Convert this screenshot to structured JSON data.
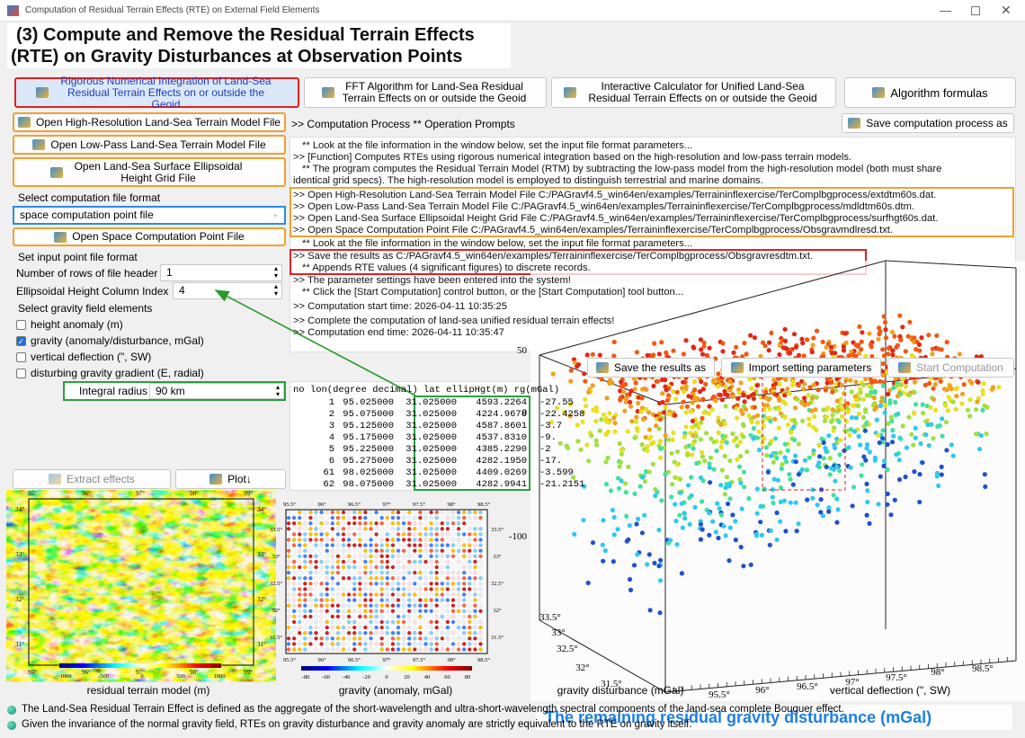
{
  "window_title": "Computation of Residual Terrain Effects (RTE) on External Field Elements",
  "heading": [
    "(3) Compute and Remove the Residual Terrain Effects",
    "(RTE) on Gravity Disturbances at Observation Points"
  ],
  "top_buttons": [
    "Rigorous Numerical Integration of Land-Sea Residual Terrain Effects on or outside the Geoid",
    "FFT Algorithm for Land-Sea Residual Terrain Effects on or outside the Geoid",
    "Interactive Calculator for Unified Land-Sea Residual Terrain Effects on or outside the Geoid",
    "Algorithm formulas"
  ],
  "left_panel": {
    "open_buttons": [
      "Open High-Resolution Land-Sea Terrain Model File",
      "Open Low-Pass Land-Sea Terrain Model File",
      "Open Land-Sea Surface Ellipsoidal Height Grid File"
    ],
    "select_format_label": "Select computation file format",
    "format_value": "space computation point file",
    "open_point_button": "Open Space Computation Point File",
    "input_format_label": "Set input point file format",
    "header_rows_label": "Number of rows of file header",
    "header_rows_value": "1",
    "height_column_label": "Ellipsoidal Height Column Index",
    "height_column_value": "4",
    "elements_label": "Select gravity field elements",
    "elements": [
      {
        "label": "height anomaly (m)",
        "checked": false
      },
      {
        "label": "gravity (anomaly/disturbance, mGal)",
        "checked": true
      },
      {
        "label": "vertical deflection (\", SW)",
        "checked": false
      },
      {
        "label": "disturbing gravity gradient (E, radial)",
        "checked": false
      }
    ],
    "radius_label": "Integral radius",
    "radius_value": "90 km"
  },
  "bottom_buttons": [
    "Extract effects",
    "Plot↓"
  ],
  "log": {
    "header": ">> Computation Process  ** Operation Prompts",
    "save_button": "Save computation process as",
    "lines": [
      "** Look at the file information in the window below, set the input file format parameters...",
      ">> [Function] Computes RTEs using rigorous numerical integration based on the high-resolution and low-pass terrain models.",
      "** The program computes the Residual Terrain Model (RTM) by subtracting the low-pass model from the high-resolution model (both must share",
      "identical grid specs). The high-resolution model is employed to distinguish terrestrial and marine domains.",
      ">> Open High-Resolution Land-Sea Terrain Model File C:/PAGravf4.5_win64en/examples/Terraininflexercise/TerComplbgprocess/extdtm60s.dat.",
      ">> Open Low-Pass Land-Sea Terrain Model File C:/PAGravf4.5_win64en/examples/Terraininflexercise/TerComplbgprocess/mdldtm60s.dtm.",
      ">> Open Land-Sea Surface Ellipsoidal Height Grid File C:/PAGravf4.5_win64en/examples/Terraininflexercise/TerComplbgprocess/surfhgt60s.dat.",
      ">> Open Space Computation Point File C:/PAGravf4.5_win64en/examples/Terraininflexercise/TerComplbgprocess/Obsgravmdlresd.txt.",
      "** Look at the file information in the window below, set the input file format parameters...",
      ">> Save the results as C:/PAGravf4.5_win64en/examples/Terraininflexercise/TerComplbgprocess/Obsgravresdtm.txt.",
      "** Appends RTE values (4 significant figures) to discrete records.",
      ">> The parameter settings have been entered into the system!",
      "** Click the [Start Computation] control button, or the [Start Computation] tool button...",
      ">> Computation start time: 2026-04-11 10:35:25",
      ">> Complete the computation of land-sea unified residual terrain effects!",
      ">> Computation end time: 2026-04-11 10:35:47"
    ]
  },
  "toolbar": [
    "Save the results as",
    "Import setting parameters",
    "Start Computation"
  ],
  "table": {
    "header": "no lon(degree decimal) lat ellipHgt(m) rg(mGal)",
    "rows": [
      [
        "1",
        "95.025000",
        "31.025000",
        "4593.2264",
        "-27.55"
      ],
      [
        "2",
        "95.075000",
        "31.025000",
        "4224.9678",
        "-22.4258"
      ],
      [
        "3",
        "95.125000",
        "31.025000",
        "4587.8601",
        "-3.7"
      ],
      [
        "4",
        "95.175000",
        "31.025000",
        "4537.8310",
        "-9."
      ],
      [
        "5",
        "95.225000",
        "31.025000",
        "4385.2290",
        "-2"
      ],
      [
        "6",
        "95.275000",
        "31.025000",
        "4282.1950",
        "-17."
      ],
      [
        "61",
        "98.025000",
        "31.025000",
        "4409.0269",
        "-3.599"
      ],
      [
        "62",
        "98.075000",
        "31.025000",
        "4282.9941",
        "-21.2151"
      ]
    ]
  },
  "maps": [
    {
      "caption": "residual terrain model (m)",
      "xticks": [
        "95°",
        "96°",
        "97°",
        "98°",
        "99°"
      ],
      "yticks": [
        "34°",
        "33°",
        "32°",
        "31°"
      ],
      "colorbar": [
        "-1000",
        "-500",
        "0",
        "500",
        "1000"
      ]
    },
    {
      "caption": "gravity (anomaly, mGal)",
      "xticks": [
        "95.5°",
        "96°",
        "96.5°",
        "97°",
        "97.5°",
        "98°",
        "98.5°"
      ],
      "yticks": [
        "33.5°",
        "33°",
        "32.5°",
        "32°",
        "31.5°"
      ],
      "colorbar": [
        "-80",
        "-60",
        "-40",
        "-20",
        "0",
        "20",
        "40",
        "60",
        "80"
      ]
    },
    {
      "caption": "gravity disturbance (mGal)"
    },
    {
      "caption": "vertical deflection (\", SW)"
    }
  ],
  "plot3d": {
    "label": "The remaining residual gravity disturbance (mGal)",
    "zticks": [
      "50",
      "0",
      "-100"
    ],
    "yticks": [
      "33.5°",
      "33°",
      "32.5°",
      "32°",
      "31.5°"
    ],
    "xticks": [
      "95.5°",
      "96°",
      "96.5°",
      "97°",
      "97.5°",
      "98°",
      "98.5°"
    ]
  },
  "notes": [
    "The Land-Sea Residual Terrain Effect is defined as the aggregate of the short-wavelength and ultra-short-wavelength spectral components of the land-sea complete Bouguer effect.",
    "Given the invariance of the normal gravity field, RTEs on gravity disturbance and gravity anomaly are strictly equivalent to the RTE on gravity itself."
  ]
}
